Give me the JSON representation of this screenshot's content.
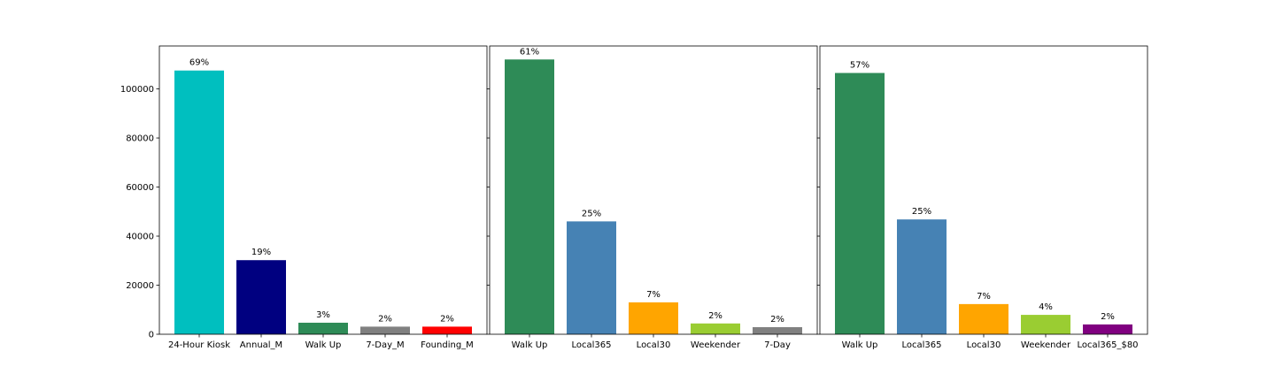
{
  "chart_data": [
    {
      "type": "bar",
      "categories": [
        "24-Hour Kiosk",
        "Annual_M",
        "Walk Up",
        "7-Day_M",
        "Founding_M"
      ],
      "values": [
        107500,
        30200,
        4700,
        3100,
        3100
      ],
      "labels": [
        "69%",
        "19%",
        "3%",
        "2%",
        "2%"
      ],
      "colors": [
        "#00bfbf",
        "#000080",
        "#2e8b57",
        "#808080",
        "#ff0000"
      ],
      "ylim": [
        0,
        117500
      ],
      "yticks": [
        0,
        20000,
        40000,
        60000,
        80000,
        100000
      ],
      "title": "",
      "xlabel": "",
      "ylabel": "",
      "grid": false
    },
    {
      "type": "bar",
      "categories": [
        "Walk Up",
        "Local365",
        "Local30",
        "Weekender",
        "7-Day"
      ],
      "values": [
        112000,
        46000,
        13000,
        4400,
        2900
      ],
      "labels": [
        "61%",
        "25%",
        "7%",
        "2%",
        "2%"
      ],
      "colors": [
        "#2e8b57",
        "#4682b4",
        "#ffa500",
        "#9acd32",
        "#808080"
      ],
      "ylim": [
        0,
        117500
      ],
      "yticks": [
        0,
        20000,
        40000,
        60000,
        80000,
        100000
      ],
      "title": "",
      "xlabel": "",
      "ylabel": "",
      "grid": false
    },
    {
      "type": "bar",
      "categories": [
        "Walk Up",
        "Local365",
        "Local30",
        "Weekender",
        "Local365_$80"
      ],
      "values": [
        106500,
        46800,
        12300,
        7900,
        4000
      ],
      "labels": [
        "57%",
        "25%",
        "7%",
        "4%",
        "2%"
      ],
      "colors": [
        "#2e8b57",
        "#4682b4",
        "#ffa500",
        "#9acd32",
        "#800080"
      ],
      "ylim": [
        0,
        117500
      ],
      "yticks": [
        0,
        20000,
        40000,
        60000,
        80000,
        100000
      ],
      "title": "",
      "xlabel": "",
      "ylabel": "",
      "grid": false
    }
  ]
}
